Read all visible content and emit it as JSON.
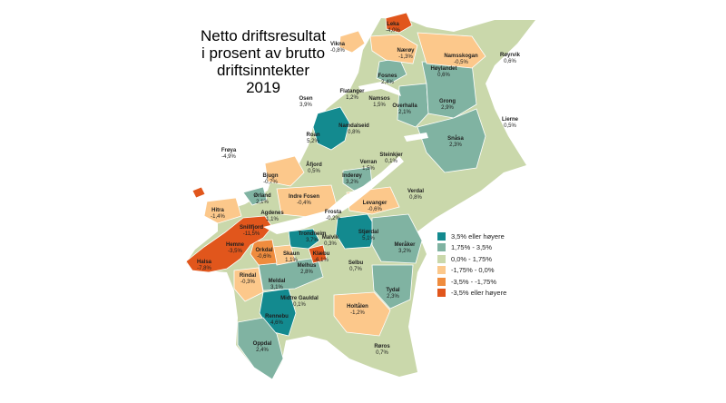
{
  "title": {
    "line1": "Netto driftsresultat",
    "line2": "i prosent av brutto",
    "line3": "driftsinntekter",
    "line4": "2019"
  },
  "colors": {
    "c1": "#138a8f",
    "c2": "#80b3a2",
    "c3": "#cad8ab",
    "c4": "#fcc88b",
    "c5": "#ef8c3e",
    "c6": "#e1561c",
    "water": "#ffffff"
  },
  "legend": [
    {
      "label": "3,5% eller høyere",
      "color": "#138a8f"
    },
    {
      "label": "1,75% - 3,5%",
      "color": "#80b3a2"
    },
    {
      "label": "0,0% - 1,75%",
      "color": "#cad8ab"
    },
    {
      "label": "-1,75% - 0,0%",
      "color": "#fcc88b"
    },
    {
      "label": "-3,5% - -1,75%",
      "color": "#ef8c3e"
    },
    {
      "label": "-3,5% eller høyere",
      "color": "#e1561c"
    }
  ],
  "municipalities": [
    {
      "name": "Leka",
      "value": "-4,0%"
    },
    {
      "name": "Vikna",
      "value": "-0,8%"
    },
    {
      "name": "Nærøy",
      "value": "-1,3%"
    },
    {
      "name": "Namsskogan",
      "value": "-0,5%"
    },
    {
      "name": "Røyrvik",
      "value": "0,6%"
    },
    {
      "name": "Fosnes",
      "value": "2,4%"
    },
    {
      "name": "Høylandet",
      "value": "0,6%"
    },
    {
      "name": "Flatanger",
      "value": "1,2%"
    },
    {
      "name": "Osen",
      "value": "3,9%"
    },
    {
      "name": "Namsos",
      "value": "1,5%"
    },
    {
      "name": "Overhalla",
      "value": "2,1%"
    },
    {
      "name": "Grong",
      "value": "2,9%"
    },
    {
      "name": "Lierne",
      "value": "0,5%"
    },
    {
      "name": "Namdalseid",
      "value": "0,8%"
    },
    {
      "name": "Roan",
      "value": "5,2%"
    },
    {
      "name": "Snåsa",
      "value": "2,3%"
    },
    {
      "name": "Steinkjer",
      "value": "0,1%"
    },
    {
      "name": "Frøya",
      "value": "-4,9%"
    },
    {
      "name": "Åfjord",
      "value": "0,5%"
    },
    {
      "name": "Verran",
      "value": "1,5%"
    },
    {
      "name": "Bjugn",
      "value": "-0,7%"
    },
    {
      "name": "Inderøy",
      "value": "3,2%"
    },
    {
      "name": "Verdal",
      "value": "0,8%"
    },
    {
      "name": "Ørland",
      "value": "2,1%"
    },
    {
      "name": "Indre Fosen",
      "value": "-0,4%"
    },
    {
      "name": "Levanger",
      "value": "-0,6%"
    },
    {
      "name": "Hitra",
      "value": "-1,4%"
    },
    {
      "name": "Agdenes",
      "value": "1,1%"
    },
    {
      "name": "Frosta",
      "value": "-0,2%"
    },
    {
      "name": "Snillfjord",
      "value": "-11,5%"
    },
    {
      "name": "Trondheim",
      "value": "3,7%"
    },
    {
      "name": "Malvik",
      "value": "0,3%"
    },
    {
      "name": "Stjørdal",
      "value": "5,1%"
    },
    {
      "name": "Meråker",
      "value": "3,2%"
    },
    {
      "name": "Hemne",
      "value": "-3,5%"
    },
    {
      "name": "Orkdal",
      "value": "-0,6%"
    },
    {
      "name": "Skaun",
      "value": "1,1%"
    },
    {
      "name": "Klæbu",
      "value": "-6,1%"
    },
    {
      "name": "Halsa",
      "value": "-7,8%"
    },
    {
      "name": "Melhus",
      "value": "2,8%"
    },
    {
      "name": "Selbu",
      "value": "0,7%"
    },
    {
      "name": "Rindal",
      "value": "-0,3%"
    },
    {
      "name": "Meldal",
      "value": "3,1%"
    },
    {
      "name": "Tydal",
      "value": "2,3%"
    },
    {
      "name": "Midtre Gauldal",
      "value": "0,1%"
    },
    {
      "name": "Rennebu",
      "value": "4,6%"
    },
    {
      "name": "Holtålen",
      "value": "-1,2%"
    },
    {
      "name": "Oppdal",
      "value": "2,4%"
    },
    {
      "name": "Røros",
      "value": "0,7%"
    }
  ]
}
